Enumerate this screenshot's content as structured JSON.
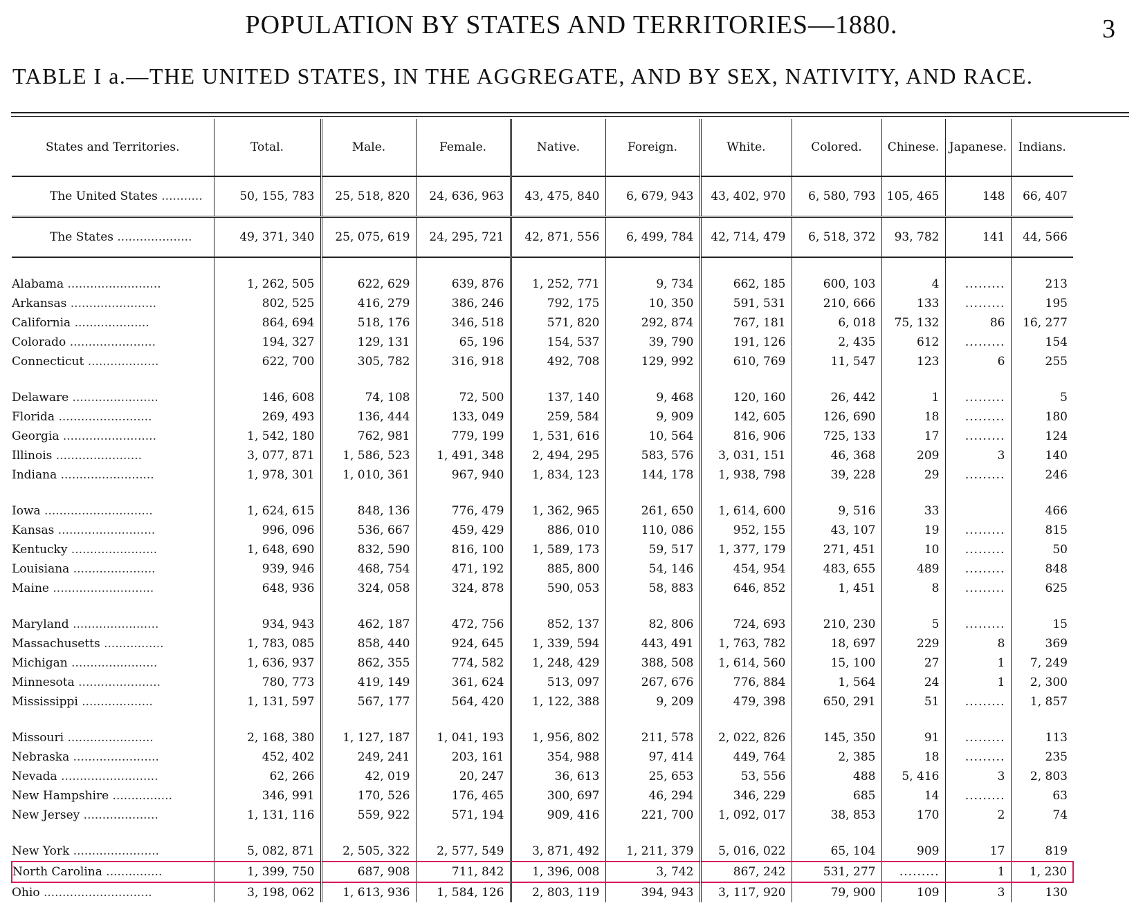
{
  "page": {
    "title": "POPULATION BY STATES AND TERRITORIES—1880.",
    "number": "3"
  },
  "caption": "TABLE I a.—THE UNITED STATES, IN THE AGGREGATE, AND BY SEX, NATIVITY, AND RACE.",
  "table": {
    "headers": [
      "States and Territories.",
      "Total.",
      "Male.",
      "Female.",
      "Native.",
      "Foreign.",
      "White.",
      "Colored.",
      "Chinese.",
      "Japanese.",
      "Indians."
    ],
    "aggregates": [
      {
        "name": "The United States",
        "values": [
          "50, 155, 783",
          "25, 518, 820",
          "24, 636, 963",
          "43, 475, 840",
          "6, 679, 943",
          "43, 402, 970",
          "6, 580, 793",
          "105, 465",
          "148",
          "66, 407"
        ]
      },
      {
        "name": "The States",
        "values": [
          "49, 371, 340",
          "25, 075, 619",
          "24, 295, 721",
          "42, 871, 556",
          "6, 499, 784",
          "42, 714, 479",
          "6, 518, 372",
          "93, 782",
          "141",
          "44, 566"
        ]
      }
    ],
    "groups": [
      [
        {
          "name": "Alabama",
          "values": [
            "1, 262, 505",
            "622, 629",
            "639, 876",
            "1, 252, 771",
            "9, 734",
            "662, 185",
            "600, 103",
            "4",
            ".........",
            "213"
          ]
        },
        {
          "name": "Arkansas",
          "values": [
            "802, 525",
            "416, 279",
            "386, 246",
            "792, 175",
            "10, 350",
            "591, 531",
            "210, 666",
            "133",
            ".........",
            "195"
          ]
        },
        {
          "name": "California",
          "values": [
            "864, 694",
            "518, 176",
            "346, 518",
            "571, 820",
            "292, 874",
            "767, 181",
            "6, 018",
            "75, 132",
            "86",
            "16, 277"
          ]
        },
        {
          "name": "Colorado",
          "values": [
            "194, 327",
            "129, 131",
            "65, 196",
            "154, 537",
            "39, 790",
            "191, 126",
            "2, 435",
            "612",
            ".........",
            "154"
          ]
        },
        {
          "name": "Connecticut",
          "values": [
            "622, 700",
            "305, 782",
            "316, 918",
            "492, 708",
            "129, 992",
            "610, 769",
            "11, 547",
            "123",
            "6",
            "255"
          ]
        }
      ],
      [
        {
          "name": "Delaware",
          "values": [
            "146, 608",
            "74, 108",
            "72, 500",
            "137, 140",
            "9, 468",
            "120, 160",
            "26, 442",
            "1",
            ".........",
            "5"
          ]
        },
        {
          "name": "Florida",
          "values": [
            "269, 493",
            "136, 444",
            "133, 049",
            "259, 584",
            "9, 909",
            "142, 605",
            "126, 690",
            "18",
            ".........",
            "180"
          ]
        },
        {
          "name": "Georgia",
          "values": [
            "1, 542, 180",
            "762, 981",
            "779, 199",
            "1, 531, 616",
            "10, 564",
            "816, 906",
            "725, 133",
            "17",
            ".........",
            "124"
          ]
        },
        {
          "name": "Illinois",
          "values": [
            "3, 077, 871",
            "1, 586, 523",
            "1, 491, 348",
            "2, 494, 295",
            "583, 576",
            "3, 031, 151",
            "46, 368",
            "209",
            "3",
            "140"
          ]
        },
        {
          "name": "Indiana",
          "values": [
            "1, 978, 301",
            "1, 010, 361",
            "967, 940",
            "1, 834, 123",
            "144, 178",
            "1, 938, 798",
            "39, 228",
            "29",
            ".........",
            "246"
          ]
        }
      ],
      [
        {
          "name": "Iowa",
          "values": [
            "1, 624, 615",
            "848, 136",
            "776, 479",
            "1, 362, 965",
            "261, 650",
            "1, 614, 600",
            "9, 516",
            "33",
            "",
            "466"
          ]
        },
        {
          "name": "Kansas",
          "values": [
            "996, 096",
            "536, 667",
            "459, 429",
            "886, 010",
            "110, 086",
            "952, 155",
            "43, 107",
            "19",
            ".........",
            "815"
          ]
        },
        {
          "name": "Kentucky",
          "values": [
            "1, 648, 690",
            "832, 590",
            "816, 100",
            "1, 589, 173",
            "59, 517",
            "1, 377, 179",
            "271, 451",
            "10",
            ".........",
            "50"
          ]
        },
        {
          "name": "Louisiana",
          "values": [
            "939, 946",
            "468, 754",
            "471, 192",
            "885, 800",
            "54, 146",
            "454, 954",
            "483, 655",
            "489",
            ".........",
            "848"
          ]
        },
        {
          "name": "Maine",
          "values": [
            "648, 936",
            "324, 058",
            "324, 878",
            "590, 053",
            "58, 883",
            "646, 852",
            "1, 451",
            "8",
            ".........",
            "625"
          ]
        }
      ],
      [
        {
          "name": "Maryland",
          "values": [
            "934, 943",
            "462, 187",
            "472, 756",
            "852, 137",
            "82, 806",
            "724, 693",
            "210, 230",
            "5",
            ".........",
            "15"
          ]
        },
        {
          "name": "Massachusetts",
          "values": [
            "1, 783, 085",
            "858, 440",
            "924, 645",
            "1, 339, 594",
            "443, 491",
            "1, 763, 782",
            "18, 697",
            "229",
            "8",
            "369"
          ]
        },
        {
          "name": "Michigan",
          "values": [
            "1, 636, 937",
            "862, 355",
            "774, 582",
            "1, 248, 429",
            "388, 508",
            "1, 614, 560",
            "15, 100",
            "27",
            "1",
            "7, 249"
          ]
        },
        {
          "name": "Minnesota",
          "values": [
            "780, 773",
            "419, 149",
            "361, 624",
            "513, 097",
            "267, 676",
            "776, 884",
            "1, 564",
            "24",
            "1",
            "2, 300"
          ]
        },
        {
          "name": "Mississippi",
          "values": [
            "1, 131, 597",
            "567, 177",
            "564, 420",
            "1, 122, 388",
            "9, 209",
            "479, 398",
            "650, 291",
            "51",
            ".........",
            "1, 857"
          ]
        }
      ],
      [
        {
          "name": "Missouri",
          "values": [
            "2, 168, 380",
            "1, 127, 187",
            "1, 041, 193",
            "1, 956, 802",
            "211, 578",
            "2, 022, 826",
            "145, 350",
            "91",
            ".........",
            "113"
          ]
        },
        {
          "name": "Nebraska",
          "values": [
            "452, 402",
            "249, 241",
            "203, 161",
            "354, 988",
            "97, 414",
            "449, 764",
            "2, 385",
            "18",
            ".........",
            "235"
          ]
        },
        {
          "name": "Nevada",
          "values": [
            "62, 266",
            "42, 019",
            "20, 247",
            "36, 613",
            "25, 653",
            "53, 556",
            "488",
            "5, 416",
            "3",
            "2, 803"
          ]
        },
        {
          "name": "New Hampshire",
          "values": [
            "346, 991",
            "170, 526",
            "176, 465",
            "300, 697",
            "46, 294",
            "346, 229",
            "685",
            "14",
            ".........",
            "63"
          ]
        },
        {
          "name": "New Jersey",
          "values": [
            "1, 131, 116",
            "559, 922",
            "571, 194",
            "909, 416",
            "221, 700",
            "1, 092, 017",
            "38, 853",
            "170",
            "2",
            "74"
          ]
        }
      ],
      [
        {
          "name": "New York",
          "values": [
            "5, 082, 871",
            "2, 505, 322",
            "2, 577, 549",
            "3, 871, 492",
            "1, 211, 379",
            "5, 016, 022",
            "65, 104",
            "909",
            "17",
            "819"
          ]
        },
        {
          "name": "North Carolina",
          "values": [
            "1, 399, 750",
            "687, 908",
            "711, 842",
            "1, 396, 008",
            "3, 742",
            "867, 242",
            "531, 277",
            ".........",
            "1",
            "1, 230"
          ]
        },
        {
          "name": "Ohio",
          "values": [
            "3, 198, 062",
            "1, 613, 936",
            "1, 584, 126",
            "2, 803, 119",
            "394, 943",
            "3, 117, 920",
            "79, 900",
            "109",
            "3",
            "130"
          ]
        }
      ]
    ],
    "highlight_row": "North Carolina"
  }
}
